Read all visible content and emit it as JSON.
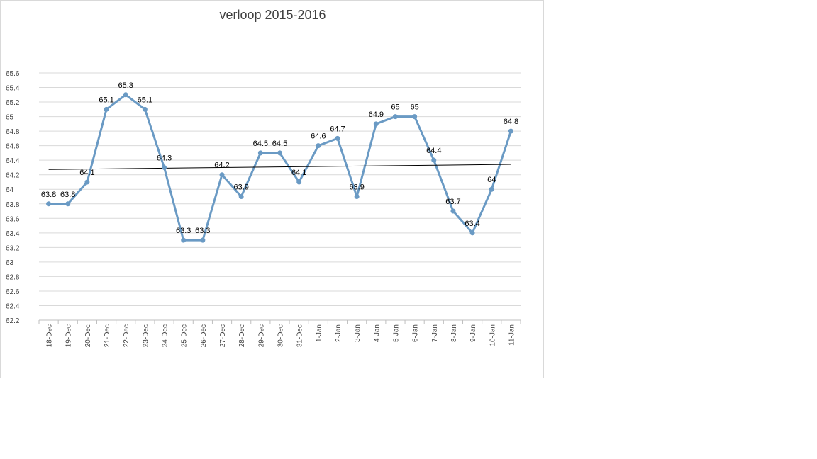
{
  "chart_data": {
    "type": "line",
    "title": "verloop 2015-2016",
    "xlabel": "",
    "ylabel": "",
    "categories": [
      "18-Dec",
      "19-Dec",
      "20-Dec",
      "21-Dec",
      "22-Dec",
      "23-Dec",
      "24-Dec",
      "25-Dec",
      "26-Dec",
      "27-Dec",
      "28-Dec",
      "29-Dec",
      "30-Dec",
      "31-Dec",
      "1-Jan",
      "2-Jan",
      "3-Jan",
      "4-Jan",
      "5-Jan",
      "6-Jan",
      "7-Jan",
      "8-Jan",
      "9-Jan",
      "10-Jan",
      "11-Jan"
    ],
    "series": [
      {
        "values": [
          63.8,
          63.8,
          64.1,
          65.1,
          65.3,
          65.1,
          64.3,
          63.3,
          63.3,
          64.2,
          63.9,
          64.5,
          64.5,
          64.1,
          64.6,
          64.7,
          63.9,
          64.9,
          65,
          65,
          64.4,
          63.7,
          63.4,
          64,
          64.8
        ],
        "color": "#6a9ac4"
      }
    ],
    "data_labels": true,
    "trendline": {
      "type": "linear",
      "color": "#000000"
    },
    "ylim": [
      62.2,
      65.6
    ],
    "yticks": [
      "62.2",
      "62.4",
      "62.6",
      "62.8",
      "63",
      "63.2",
      "63.4",
      "63.6",
      "63.8",
      "64",
      "64.2",
      "64.4",
      "64.6",
      "64.8",
      "65",
      "65.2",
      "65.4",
      "65.6"
    ],
    "grid": true,
    "legend": "none"
  }
}
